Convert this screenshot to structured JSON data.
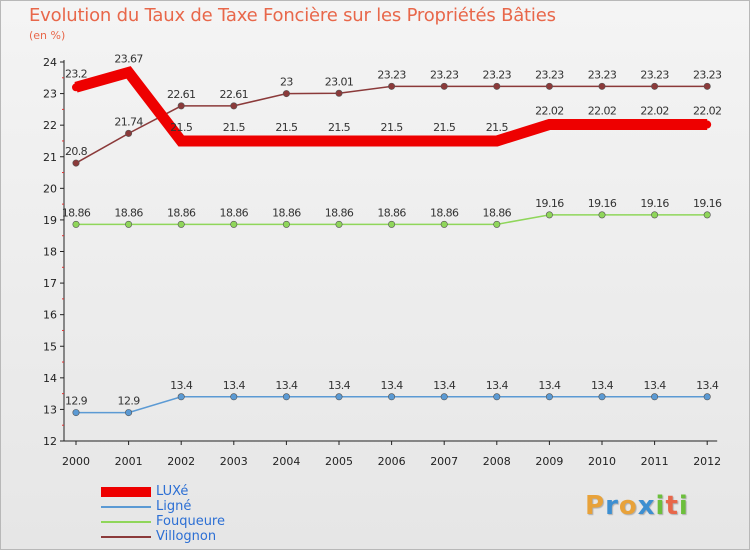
{
  "title": "Evolution du Taux de Taxe Foncière sur les Propriétés Bâties",
  "subtitle": "(en %)",
  "logo": {
    "letters": [
      "P",
      "r",
      "o",
      "x",
      "i",
      "t",
      "i"
    ],
    "colors": [
      "#e8a23a",
      "#3d8fd1",
      "#e8a23a",
      "#3d8fd1",
      "#6cbf3c",
      "#e8674a",
      "#6cbf3c"
    ]
  },
  "chart_data": {
    "type": "line",
    "title": "Evolution du Taux de Taxe Foncière sur les Propriétés Bâties",
    "ylabel": "(en %)",
    "x": [
      "2000",
      "2001",
      "2002",
      "2003",
      "2004",
      "2005",
      "2006",
      "2007",
      "2008",
      "2009",
      "2010",
      "2011",
      "2012"
    ],
    "ylim": [
      12,
      24
    ],
    "yticks": [
      "12",
      "13",
      "14",
      "15",
      "16",
      "17",
      "18",
      "19",
      "20",
      "21",
      "22",
      "23",
      "24"
    ],
    "grid": false,
    "legend_position": "bottom-left",
    "series": [
      {
        "name": "LUXé",
        "color": "#ee0000",
        "style": "thick",
        "values": [
          23.2,
          23.67,
          21.5,
          21.5,
          21.5,
          21.5,
          21.5,
          21.5,
          21.5,
          22.02,
          22.02,
          22.02,
          22.02
        ],
        "labels": [
          "23.2",
          "23.67",
          "21.5",
          "21.5",
          "21.5",
          "21.5",
          "21.5",
          "21.5",
          "21.5",
          "22.02",
          "22.02",
          "22.02",
          "22.02"
        ]
      },
      {
        "name": "Ligné",
        "color": "#5b9ad4",
        "style": "thin",
        "values": [
          12.9,
          12.9,
          13.4,
          13.4,
          13.4,
          13.4,
          13.4,
          13.4,
          13.4,
          13.4,
          13.4,
          13.4,
          13.4
        ],
        "labels": [
          "12.9",
          "12.9",
          "13.4",
          "13.4",
          "13.4",
          "13.4",
          "13.4",
          "13.4",
          "13.4",
          "13.4",
          "13.4",
          "13.4",
          "13.4"
        ]
      },
      {
        "name": "Fouqueure",
        "color": "#8fd65a",
        "style": "thin",
        "values": [
          18.86,
          18.86,
          18.86,
          18.86,
          18.86,
          18.86,
          18.86,
          18.86,
          18.86,
          19.16,
          19.16,
          19.16,
          19.16
        ],
        "labels": [
          "18.86",
          "18.86",
          "18.86",
          "18.86",
          "18.86",
          "18.86",
          "18.86",
          "18.86",
          "18.86",
          "19.16",
          "19.16",
          "19.16",
          "19.16"
        ]
      },
      {
        "name": "Villognon",
        "color": "#8b3a3a",
        "style": "thin",
        "values": [
          20.8,
          21.74,
          22.61,
          22.61,
          23,
          23.01,
          23.23,
          23.23,
          23.23,
          23.23,
          23.23,
          23.23,
          23.23
        ],
        "labels": [
          "20.8",
          "21.74",
          "22.61",
          "22.61",
          "23",
          "23.01",
          "23.23",
          "23.23",
          "23.23",
          "23.23",
          "23.23",
          "23.23",
          "23.23"
        ]
      }
    ]
  }
}
